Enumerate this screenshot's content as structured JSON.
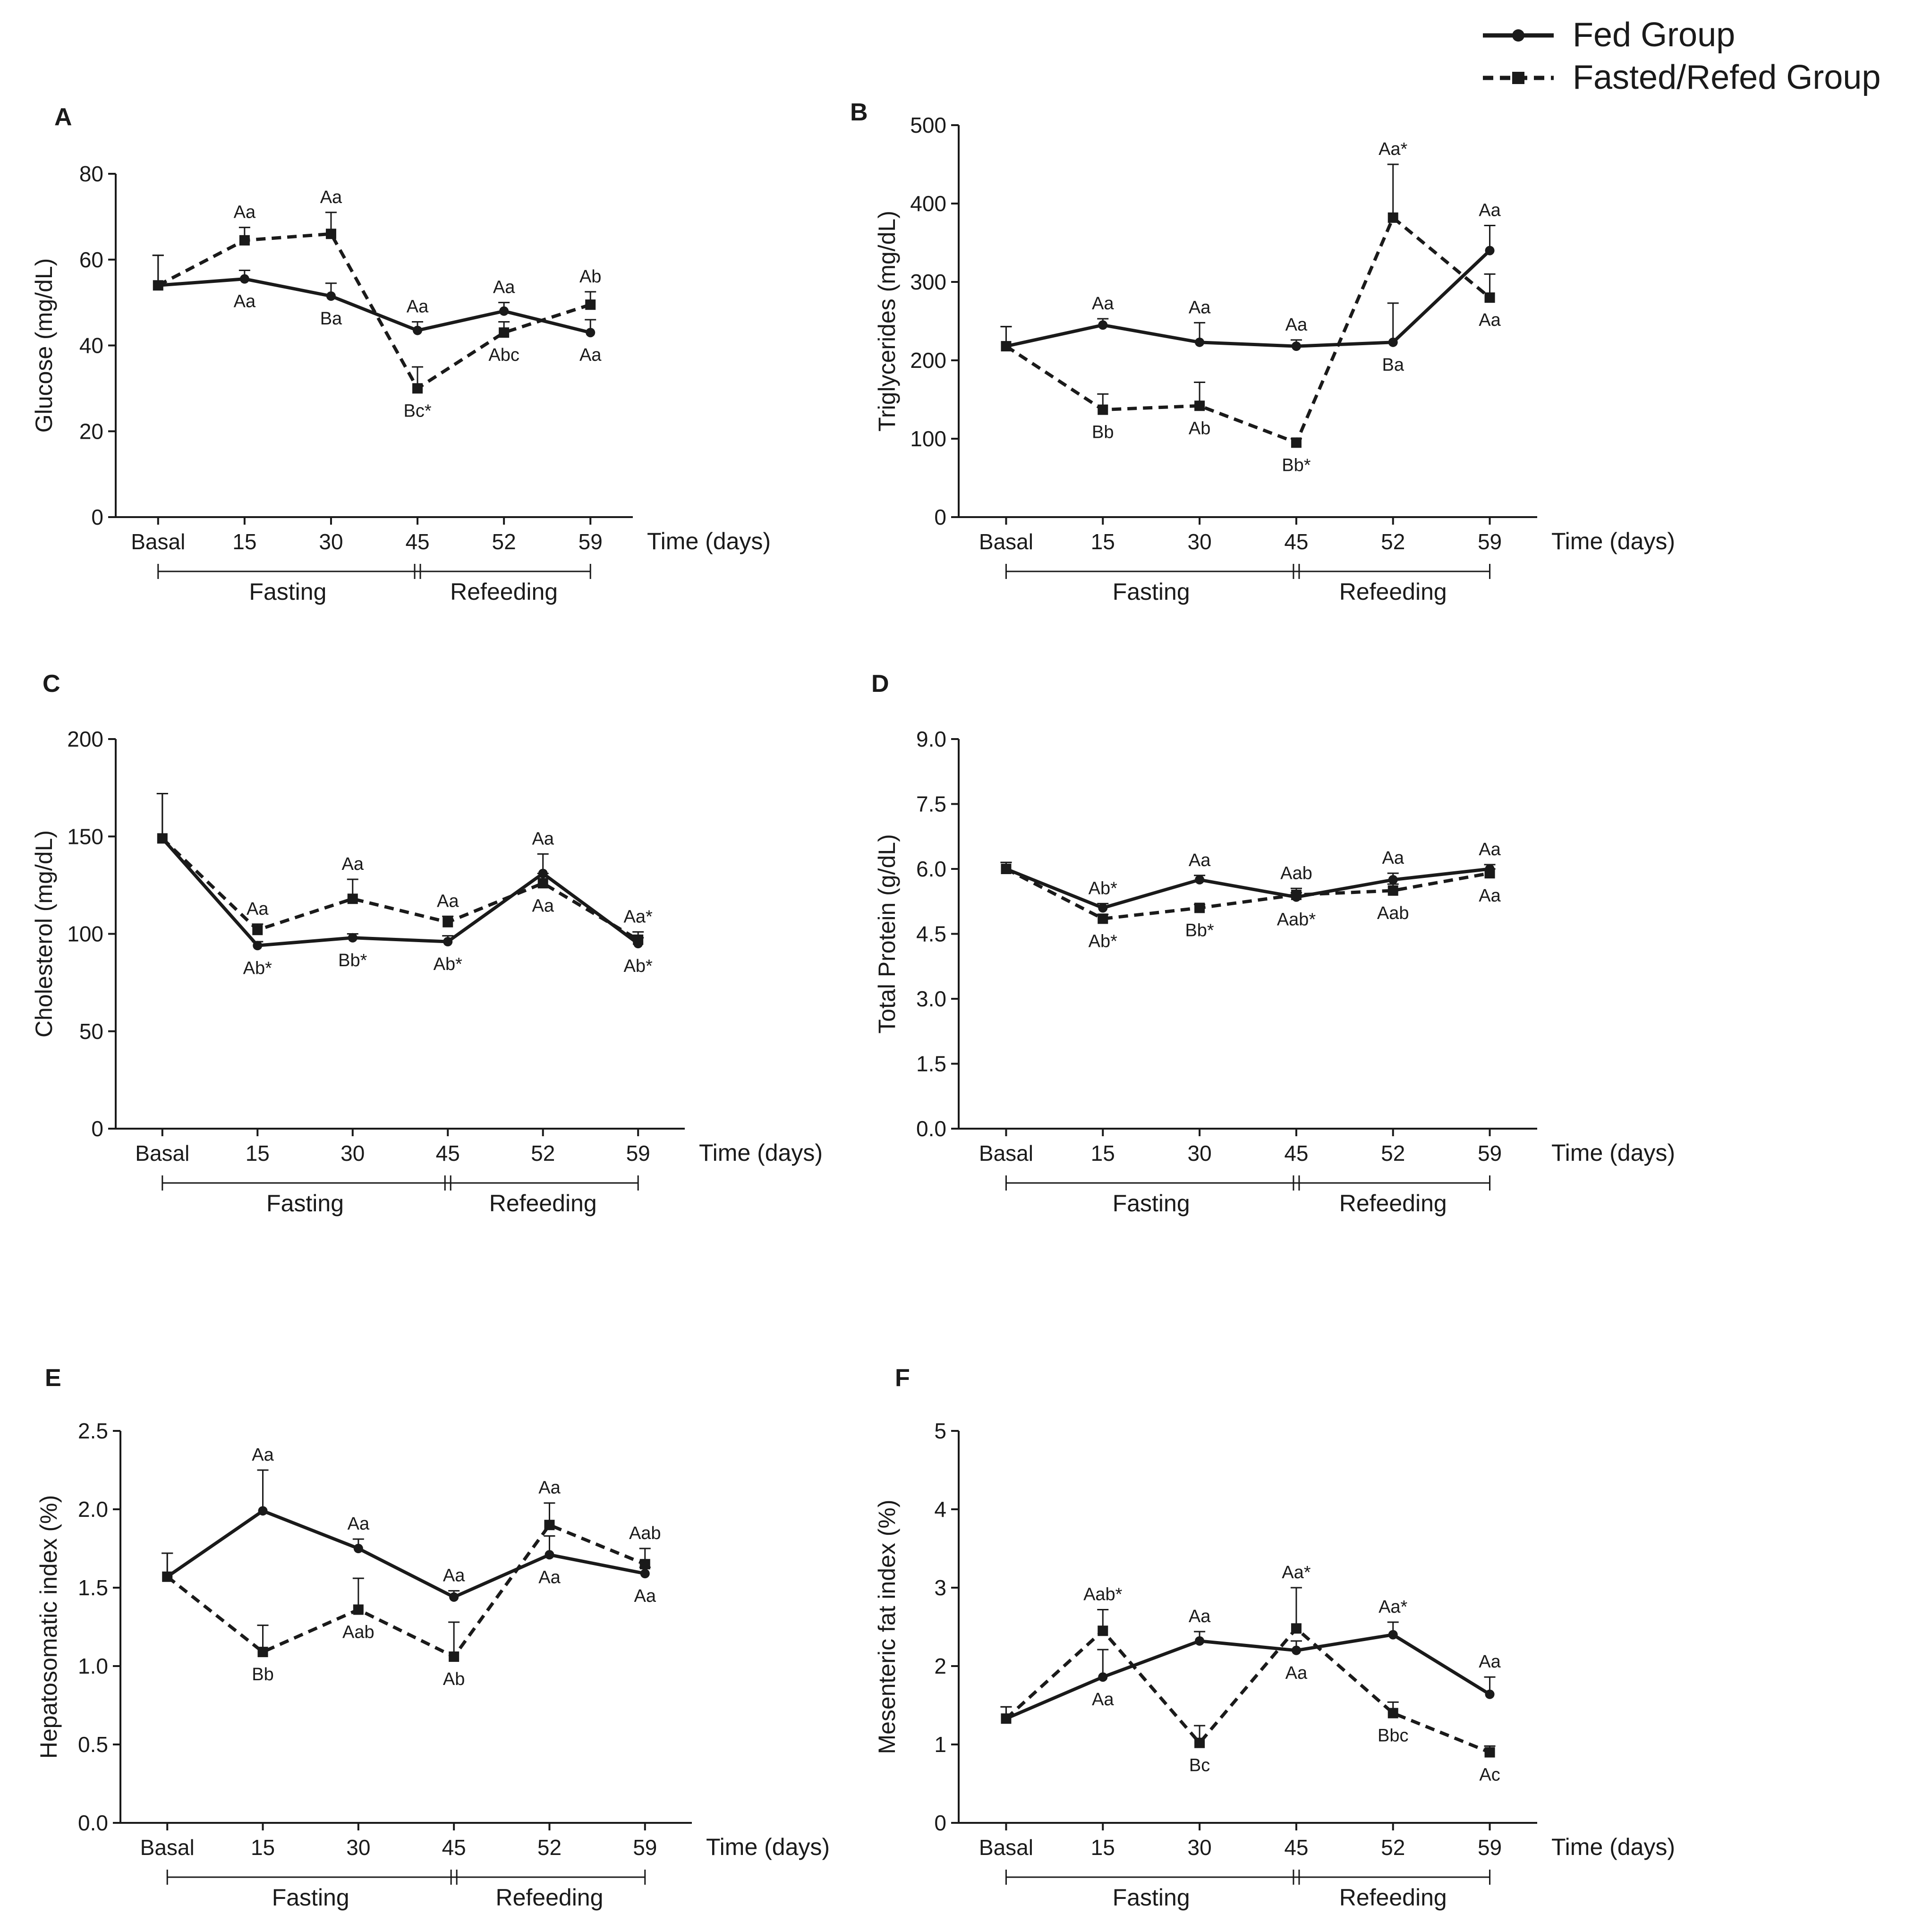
{
  "legend": {
    "fed": "Fed Group",
    "fasted": "Fasted/Refed Group"
  },
  "chart_data": [
    {
      "type": "line",
      "panel": "A",
      "ylabel": "Glucose (mg/dL)",
      "xlabel": "Time (days)",
      "ylim": [
        0,
        80
      ],
      "yticks": [
        "0",
        "20",
        "40",
        "60",
        "80"
      ],
      "categories": [
        "Basal",
        "15",
        "30",
        "45",
        "52",
        "59"
      ],
      "phases": [
        "Fasting",
        "Refeeding"
      ],
      "series": [
        {
          "name": "Fed Group",
          "values": [
            54,
            55.5,
            51.5,
            43.5,
            48,
            43
          ],
          "errors": [
            7,
            2,
            3,
            2,
            2,
            3
          ],
          "labels": [
            "",
            "Aa",
            "Ba",
            "Aa",
            "Aa",
            "Aa"
          ]
        },
        {
          "name": "Fasted/Refed Group",
          "values": [
            54,
            64.5,
            66,
            30,
            43,
            49.5
          ],
          "errors": [
            7,
            3,
            5,
            5,
            2.5,
            3
          ],
          "labels": [
            "",
            "Aa",
            "Aa",
            "Bc*",
            "Abc",
            "Ab"
          ]
        }
      ]
    },
    {
      "type": "line",
      "panel": "B",
      "ylabel": "Triglycerides (mg/dL)",
      "xlabel": "Time (days)",
      "ylim": [
        0,
        500
      ],
      "yticks": [
        "0",
        "100",
        "200",
        "300",
        "400",
        "500"
      ],
      "categories": [
        "Basal",
        "15",
        "30",
        "45",
        "52",
        "59"
      ],
      "phases": [
        "Fasting",
        "Refeeding"
      ],
      "series": [
        {
          "name": "Fed Group",
          "values": [
            218,
            245,
            223,
            218,
            223,
            340
          ],
          "errors": [
            25,
            8,
            25,
            8,
            50,
            32
          ],
          "labels": [
            "",
            "Aa",
            "Aa",
            "Aa",
            "Ba",
            "Aa"
          ]
        },
        {
          "name": "Fasted/Refed Group",
          "values": [
            218,
            137,
            142,
            95,
            382,
            280
          ],
          "errors": [
            25,
            20,
            30,
            5,
            68,
            30
          ],
          "labels": [
            "",
            "Bb",
            "Ab",
            "Bb*",
            "Aa*",
            "Aa"
          ]
        }
      ]
    },
    {
      "type": "line",
      "panel": "C",
      "ylabel": "Cholesterol (mg/dL)",
      "xlabel": "Time (days)",
      "ylim": [
        0,
        200
      ],
      "yticks": [
        "0",
        "50",
        "100",
        "150",
        "200"
      ],
      "categories": [
        "Basal",
        "15",
        "30",
        "45",
        "52",
        "59"
      ],
      "phases": [
        "Fasting",
        "Refeeding"
      ],
      "series": [
        {
          "name": "Fed Group",
          "values": [
            149,
            94,
            98,
            96,
            131,
            95
          ],
          "errors": [
            23,
            2,
            2,
            3,
            10,
            3
          ],
          "labels": [
            "",
            "Ab*",
            "Bb*",
            "Ab*",
            "Aa",
            "Ab*"
          ]
        },
        {
          "name": "Fasted/Refed Group",
          "values": [
            149,
            102,
            118,
            106,
            126,
            97
          ],
          "errors": [
            23,
            3,
            10,
            3,
            5,
            4
          ],
          "labels": [
            "",
            "Aa",
            "Aa",
            "Aa",
            "Aa",
            "Aa*"
          ]
        }
      ]
    },
    {
      "type": "line",
      "panel": "D",
      "ylabel": "Total Protein (g/dL)",
      "xlabel": "Time (days)",
      "ylim": [
        0,
        9
      ],
      "yticks": [
        "0.0",
        "1.5",
        "3.0",
        "4.5",
        "6.0",
        "7.5",
        "9.0"
      ],
      "categories": [
        "Basal",
        "15",
        "30",
        "45",
        "52",
        "59"
      ],
      "phases": [
        "Fasting",
        "Refeeding"
      ],
      "series": [
        {
          "name": "Fed Group",
          "values": [
            6.0,
            5.1,
            5.75,
            5.35,
            5.75,
            6.0
          ],
          "errors": [
            0.15,
            0.1,
            0.1,
            0.1,
            0.15,
            0.1
          ],
          "labels": [
            "",
            "Ab*",
            "Aa",
            "Aab*",
            "Aa",
            "Aa"
          ]
        },
        {
          "name": "Fasted/Refed Group",
          "values": [
            6.0,
            4.85,
            5.1,
            5.4,
            5.5,
            5.9
          ],
          "errors": [
            0.15,
            0.1,
            0.08,
            0.15,
            0.15,
            0.1
          ],
          "labels": [
            "",
            "Ab*",
            "Bb*",
            "Aab",
            "Aab",
            "Aa"
          ]
        }
      ]
    },
    {
      "type": "line",
      "panel": "E",
      "ylabel": "Hepatosomatic index (%)",
      "xlabel": "Time (days)",
      "ylim": [
        0,
        2.5
      ],
      "yticks": [
        "0.0",
        "0.5",
        "1.0",
        "1.5",
        "2.0",
        "2.5"
      ],
      "categories": [
        "Basal",
        "15",
        "30",
        "45",
        "52",
        "59"
      ],
      "phases": [
        "Fasting",
        "Refeeding"
      ],
      "series": [
        {
          "name": "Fed Group",
          "values": [
            1.57,
            1.99,
            1.75,
            1.44,
            1.71,
            1.59
          ],
          "errors": [
            0.15,
            0.26,
            0.06,
            0.04,
            0.12,
            0.04
          ],
          "labels": [
            "",
            "Aa",
            "Aa",
            "Aa",
            "Aa",
            "Aa"
          ]
        },
        {
          "name": "Fasted/Refed Group",
          "values": [
            1.57,
            1.09,
            1.36,
            1.06,
            1.9,
            1.65
          ],
          "errors": [
            0.15,
            0.17,
            0.2,
            0.22,
            0.14,
            0.1
          ],
          "labels": [
            "",
            "Bb",
            "Aab",
            "Ab",
            "Aa",
            "Aab"
          ]
        }
      ]
    },
    {
      "type": "line",
      "panel": "F",
      "ylabel": "Mesenteric fat index (%)",
      "xlabel": "Time (days)",
      "ylim": [
        0,
        5
      ],
      "yticks": [
        "0",
        "1",
        "2",
        "3",
        "4",
        "5"
      ],
      "categories": [
        "Basal",
        "15",
        "30",
        "45",
        "52",
        "59"
      ],
      "phases": [
        "Fasting",
        "Refeeding"
      ],
      "series": [
        {
          "name": "Fed Group",
          "values": [
            1.33,
            1.86,
            2.32,
            2.2,
            2.4,
            1.64
          ],
          "errors": [
            0.15,
            0.35,
            0.12,
            0.12,
            0.16,
            0.22
          ],
          "labels": [
            "",
            "Aa",
            "Aa",
            "Aa",
            "Aa*",
            "Aa"
          ]
        },
        {
          "name": "Fasted/Refed Group",
          "values": [
            1.33,
            2.45,
            1.02,
            2.48,
            1.4,
            0.9
          ],
          "errors": [
            0.15,
            0.27,
            0.22,
            0.52,
            0.14,
            0.08
          ],
          "labels": [
            "",
            "Aab*",
            "Bc",
            "Aa*",
            "Bbc",
            "Ac"
          ]
        }
      ]
    }
  ]
}
